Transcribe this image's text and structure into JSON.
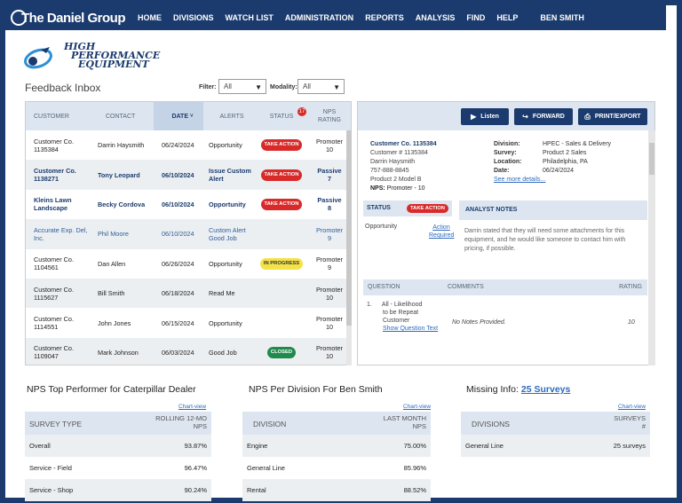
{
  "nav": {
    "brand": "The Daniel Group",
    "items": [
      "HOME",
      "DIVISIONS",
      "WATCH LIST",
      "ADMINISTRATION",
      "REPORTS",
      "ANALYSIS",
      "FIND",
      "HELP"
    ],
    "user": "BEN SMITH"
  },
  "logo": {
    "line1": "HIGH",
    "line2": "PERFORMANCE",
    "line3": "EQUIPMENT"
  },
  "inbox": {
    "title": "Feedback Inbox",
    "filter_label": "Filter:",
    "filter_value": "All",
    "modality_label": "Modality:",
    "modality_value": "All"
  },
  "table": {
    "headers": {
      "customer": "CUSTOMER",
      "contact": "CONTACT",
      "date": "DATE",
      "alerts": "ALERTS",
      "status": "STATUS",
      "status_count": "17",
      "nps_1": "NPS",
      "nps_2": "RATING"
    },
    "rows": [
      {
        "customer": "Customer Co. 1135384",
        "contact": "Darrin Haysmith",
        "date": "06/24/2024",
        "alerts": "Opportunity",
        "status": "TAKE ACTION",
        "nps_1": "Promoter",
        "nps_2": "10"
      },
      {
        "customer": "Customer Co. 1138271",
        "contact": "Tony Leopard",
        "date": "06/10/2024",
        "alerts": "Issue Custom Alert",
        "status": "TAKE ACTION",
        "nps_1": "Passive",
        "nps_2": "7"
      },
      {
        "customer": "Kleins Lawn Landscape",
        "contact": "Becky Cordova",
        "date": "06/10/2024",
        "alerts": "Opportunity",
        "status": "TAKE ACTION",
        "nps_1": "Passive",
        "nps_2": "8"
      },
      {
        "customer": "Accurate Exp. Del, Inc.",
        "contact": "Phil Moore",
        "date": "06/10/2024",
        "alerts": "Custom Alert Good Job",
        "status": "",
        "nps_1": "Promoter",
        "nps_2": "9"
      },
      {
        "customer": "Customer Co. 1104561",
        "contact": "Dan Allen",
        "date": "06/26/2024",
        "alerts": "Opportunity",
        "status": "IN PROGRESS",
        "nps_1": "Promoter",
        "nps_2": "9"
      },
      {
        "customer": "Customer Co. 1115627",
        "contact": "Bill Smith",
        "date": "06/18/2024",
        "alerts": "Read Me",
        "status": "",
        "nps_1": "Promoter",
        "nps_2": "10"
      },
      {
        "customer": "Customer Co. 1114551",
        "contact": "John Jones",
        "date": "06/15/2024",
        "alerts": "Opportunity",
        "status": "",
        "nps_1": "Promoter",
        "nps_2": "10"
      },
      {
        "customer": "Customer Co. 1109047",
        "contact": "Mark Johnson",
        "date": "06/03/2024",
        "alerts": "Good Job",
        "status": "CLOSED",
        "nps_1": "Promoter",
        "nps_2": "10"
      }
    ]
  },
  "detail": {
    "buttons": {
      "listen": "Listen",
      "forward": "FORWARD",
      "print": "PRINT/EXPORT"
    },
    "customer_name": "Customer Co. 1135384",
    "customer_num": "Customer # 1135384",
    "contact": "Darrin Haysmith",
    "phone": "757-888-8845",
    "product": "Product 2 Model B",
    "nps_label": "NPS:",
    "nps_value": "Promoter - 10",
    "division_label": "Division:",
    "division_value": "HPEC - Sales & Delivery",
    "survey_label": "Survey:",
    "survey_value": "Product 2 Sales",
    "location_label": "Location:",
    "location_value": "Philadelphia, PA",
    "date_label": "Date:",
    "date_value": "06/24/2024",
    "see_more": "See more details...",
    "status_title": "STATUS",
    "status_badge": "TAKE ACTION",
    "status_alert": "Opportunity",
    "status_link_1": "Action",
    "status_link_2": "Required",
    "notes_title": "ANALYST NOTES",
    "notes_text": "Darrin stated that they will need some attachments for this equipment, and he would like someone to contact him with pricing, if possible.",
    "q_headers": {
      "question": "QUESTION",
      "comments": "COMMENTS",
      "rating": "RATING"
    },
    "q_num": "1.",
    "q_text_1": "All - Likelihood",
    "q_text_2": "to be Repeat",
    "q_text_3": "Customer",
    "q_link": "Show Question Text",
    "q_comment": "No Notes Provided.",
    "q_rating": "10"
  },
  "cards": {
    "c1": {
      "title": "NPS Top Performer for Caterpillar Dealer",
      "chartview": "Chart-view",
      "head_l": "SURVEY TYPE",
      "head_r1": "ROLLING 12-MO",
      "head_r2": "NPS",
      "rows": [
        {
          "k": "Overall",
          "v": "93.87%"
        },
        {
          "k": "Service - Field",
          "v": "96.47%"
        },
        {
          "k": "Service - Shop",
          "v": "90.24%"
        }
      ]
    },
    "c2": {
      "title": "NPS Per Division For Ben Smith",
      "chartview": "Chart-view",
      "head_l": "DIVISION",
      "head_r1": "LAST MONTH",
      "head_r2": "NPS",
      "rows": [
        {
          "k": "Engine",
          "v": "75.00%"
        },
        {
          "k": "General Line",
          "v": "85.96%"
        },
        {
          "k": "Rental",
          "v": "88.52%"
        }
      ]
    },
    "c3": {
      "title_prefix": "Missing Info:",
      "title_link": "25 Surveys",
      "chartview": "Chart-view",
      "head_l": "DIVISIONS",
      "head_r1": "SURVEYS",
      "head_r2": "#",
      "rows": [
        {
          "k": "General Line",
          "v": "25 surveys"
        }
      ]
    }
  },
  "colors": {
    "navy": "#1b3b6e",
    "take_action": "#d92a2a",
    "in_progress": "#f4e24a",
    "closed": "#1e8a4c",
    "link": "#2d6bbf"
  }
}
